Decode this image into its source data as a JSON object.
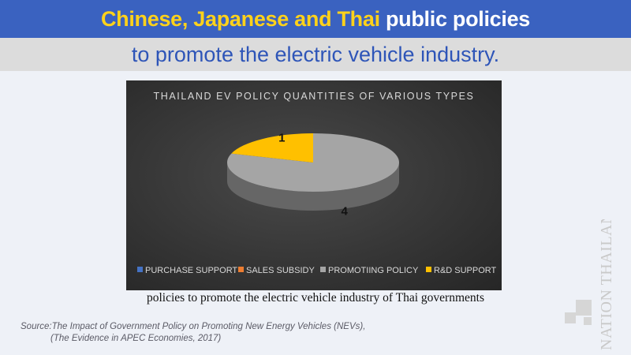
{
  "header": {
    "title_part1": "Chinese, Japanese and Thai",
    "title_part2": "public policies",
    "subtitle": "to promote the electric vehicle industry."
  },
  "chart_data": {
    "type": "pie",
    "title": "THAILAND EV POLICY QUANTITIES OF VARIOUS TYPES",
    "categories": [
      "PURCHASE SUPPORT",
      "SALES SUBSIDY",
      "PROMOTIING POLICY",
      "R&D SUPPORT"
    ],
    "values": [
      0,
      0,
      4,
      1
    ],
    "data_labels": [
      "",
      "",
      "4",
      "1"
    ],
    "colors": [
      "#4472c4",
      "#ed7d31",
      "#a5a5a5",
      "#ffc000"
    ],
    "legend_position": "bottom",
    "style": "3d"
  },
  "caption": "policies to promote the electric vehicle industry of Thai governments",
  "source": {
    "line1": "Source:The Impact of Government Policy on Promoting New Energy Vehicles (NEVs),",
    "line2": "(The Evidence in APEC Economies, 2017)"
  },
  "logo": {
    "text": "NATION THAILAND"
  }
}
